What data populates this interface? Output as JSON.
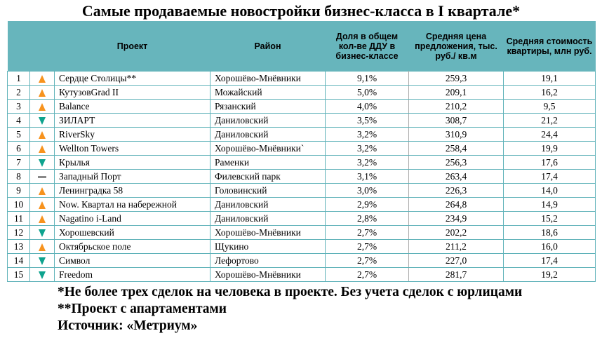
{
  "title": "Самые продаваемые новостройки бизнес-класса в I квартале*",
  "colors": {
    "header_bg": "#67b5bc",
    "border": "#5fb2b9",
    "up": "#f7931e",
    "down": "#0ea38e",
    "same": "#888888"
  },
  "columns": {
    "project": "Проект",
    "district": "Район",
    "share": "Доля в общем кол-ве ДДУ в бизнес-классе",
    "price": "Средняя цена предложения, тыс. руб./ кв.м",
    "cost": "Средняя стоимость квартиры, млн руб."
  },
  "rows": [
    {
      "n": "1",
      "trend": "up",
      "project": "Сердце Столицы**",
      "district": "Хорошёво-Мнёвники",
      "share": "9,1%",
      "price": "259,3",
      "cost": "19,1"
    },
    {
      "n": "2",
      "trend": "up",
      "project": "КутузовGrad II",
      "district": "Можайский",
      "share": "5,0%",
      "price": "209,1",
      "cost": "16,2"
    },
    {
      "n": "3",
      "trend": "up",
      "project": "Balance",
      "district": "Рязанский",
      "share": "4,0%",
      "price": "210,2",
      "cost": "9,5"
    },
    {
      "n": "4",
      "trend": "down",
      "project": "ЗИЛАРТ",
      "district": "Даниловский",
      "share": "3,5%",
      "price": "308,7",
      "cost": "21,2"
    },
    {
      "n": "5",
      "trend": "up",
      "project": "RiverSky",
      "district": "Даниловский",
      "share": "3,2%",
      "price": "310,9",
      "cost": "24,4"
    },
    {
      "n": "6",
      "trend": "up",
      "project": "Wellton Towers",
      "district": "Хорошёво-Мнёвники`",
      "share": "3,2%",
      "price": "258,4",
      "cost": "19,9"
    },
    {
      "n": "7",
      "trend": "down",
      "project": "Крылья",
      "district": "Раменки",
      "share": "3,2%",
      "price": "256,3",
      "cost": "17,6"
    },
    {
      "n": "8",
      "trend": "same",
      "project": "Западный Порт",
      "district": "Филевский парк",
      "share": "3,1%",
      "price": "263,4",
      "cost": "17,4"
    },
    {
      "n": "9",
      "trend": "up",
      "project": "Ленинградка 58",
      "district": "Головинский",
      "share": "3,0%",
      "price": "226,3",
      "cost": "14,0"
    },
    {
      "n": "10",
      "trend": "up",
      "project": "Now. Квартал на набережной",
      "district": "Даниловский",
      "share": "2,9%",
      "price": "264,8",
      "cost": "14,9"
    },
    {
      "n": "11",
      "trend": "up",
      "project": "Nagatino i-Land",
      "district": "Даниловский",
      "share": "2,8%",
      "price": "234,9",
      "cost": "15,2"
    },
    {
      "n": "12",
      "trend": "down",
      "project": "Хорошевский",
      "district": "Хорошёво-Мнёвники",
      "share": "2,7%",
      "price": "202,2",
      "cost": "18,6"
    },
    {
      "n": "13",
      "trend": "up",
      "project": "Октябрьское поле",
      "district": "Щукино",
      "share": "2,7%",
      "price": "211,2",
      "cost": "16,0"
    },
    {
      "n": "14",
      "trend": "down",
      "project": "Символ",
      "district": "Лефортово",
      "share": "2,7%",
      "price": "227,0",
      "cost": "17,4"
    },
    {
      "n": "15",
      "trend": "down",
      "project": "Freedom",
      "district": "Хорошёво-Мнёвники",
      "share": "2,7%",
      "price": "281,7",
      "cost": "19,2"
    }
  ],
  "notes": [
    "*Не более трех сделок на человека в проекте. Без учета сделок с юрлицами",
    "**Проект с апартаментами",
    "Источник: «Метриум»"
  ]
}
